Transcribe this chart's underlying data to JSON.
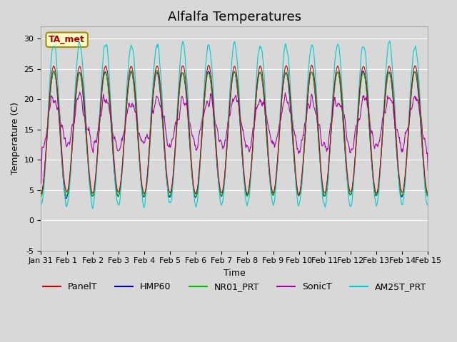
{
  "title": "Alfalfa Temperatures",
  "xlabel": "Time",
  "ylabel": "Temperature (C)",
  "ylim": [
    -5,
    32
  ],
  "xlim_days": 15,
  "annotation": "TA_met",
  "background_color": "#e8e8e8",
  "plot_bg_color": "#d8d8d8",
  "series_colors": {
    "PanelT": "#cc0000",
    "HMP60": "#0000cc",
    "NR01_PRT": "#00bb00",
    "SonicT": "#aa00aa",
    "AM25T_PRT": "#00cccc"
  },
  "x_tick_labels": [
    "Jan 31",
    "Feb 1",
    "Feb 2",
    "Feb 3",
    "Feb 4",
    "Feb 5",
    "Feb 6",
    "Feb 7",
    "Feb 8",
    "Feb 9",
    "Feb 10",
    "Feb 11",
    "Feb 12",
    "Feb 13",
    "Feb 14",
    "Feb 15"
  ],
  "y_ticks": [
    -5,
    0,
    5,
    10,
    15,
    20,
    25,
    30
  ],
  "grid_color": "#ffffff",
  "title_fontsize": 13,
  "axis_label_fontsize": 9,
  "tick_fontsize": 8,
  "legend_fontsize": 9
}
